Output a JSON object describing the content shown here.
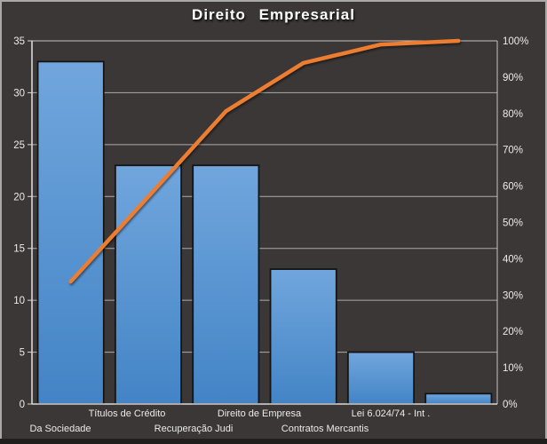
{
  "title": "Direito Empresarial",
  "chart_data": {
    "type": "bar",
    "subtype": "pareto",
    "title": "Direito Empresarial",
    "categories": [
      "Da Sociedade",
      "Títulos de Crédito",
      "Recuperação Judi",
      "Direito de Empresa",
      "Contratos Mercantis",
      "Lei 6.024/74 - Int ."
    ],
    "series": [
      {
        "name": "frequency-bars",
        "type": "bar",
        "axis": "left",
        "values": [
          33,
          23,
          23,
          13,
          5,
          1
        ]
      },
      {
        "name": "cumulative-percent-line",
        "type": "line",
        "axis": "right",
        "values": [
          33.7,
          57.1,
          80.6,
          93.9,
          99.0,
          100.0
        ]
      }
    ],
    "y_left_axis": {
      "min": 0,
      "max": 35,
      "tick_step": 5,
      "tick_labels": [
        "35",
        "30",
        "25",
        "20",
        "15",
        "10",
        "5",
        "0"
      ]
    },
    "y_right_axis": {
      "min": 0,
      "max": 100,
      "tick_step": 10,
      "format": "percent",
      "tick_labels": [
        "100%",
        "90%",
        "80%",
        "70%",
        "60%",
        "50%",
        "40%",
        "30%",
        "20%",
        "10%",
        "0%"
      ]
    },
    "grid": "horizontal gridlines every 5 units of left axis",
    "legend": "none",
    "xlabel": "",
    "ylabel": ""
  },
  "colors": {
    "background": "#3a3736",
    "frame_border": "#a9a7a7",
    "bottom_strip": "#211e1e",
    "plot_border": "#c6c3c3",
    "axis_line": "#dbd8d8",
    "gridline": "#b0acac",
    "bar_fill_top": "#71a6dd",
    "bar_fill_bottom": "#4384c6",
    "bar_border": "#141414",
    "line": "#ed7d31",
    "tick_text": "#eceaea",
    "title_text": "#ffffff"
  }
}
